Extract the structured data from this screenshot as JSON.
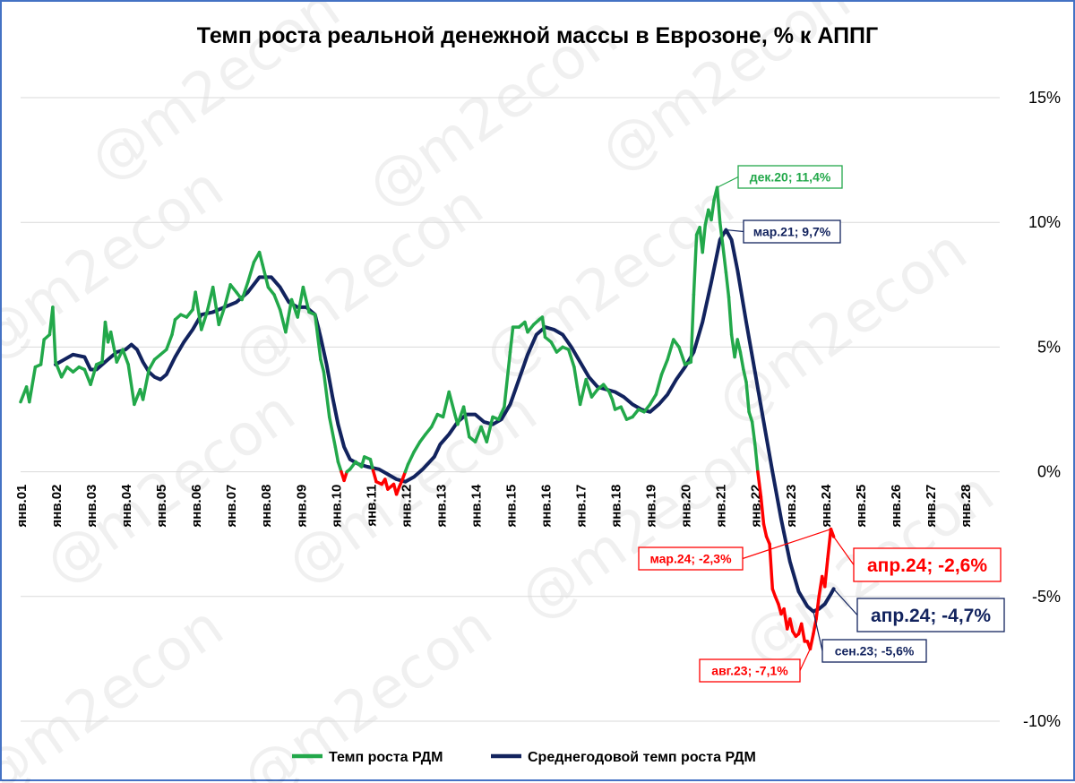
{
  "watermark": "@m2econ",
  "chart_data": {
    "type": "line",
    "title": "Темп роста реальной денежной массы в Еврозоне, % к АППГ",
    "y_axis": {
      "min": -10,
      "max": 15,
      "ticks": [
        -10,
        -5,
        0,
        5,
        10,
        15
      ],
      "tick_labels": [
        "-10%",
        "-5%",
        "0%",
        "5%",
        "10%",
        "15%"
      ],
      "position": "right"
    },
    "x_axis": {
      "min": 2001.0,
      "max": 2029.0,
      "ticks": [
        2001,
        2002,
        2003,
        2004,
        2005,
        2006,
        2007,
        2008,
        2009,
        2010,
        2011,
        2012,
        2013,
        2014,
        2015,
        2016,
        2017,
        2018,
        2019,
        2020,
        2021,
        2022,
        2023,
        2024,
        2025,
        2026,
        2027,
        2028
      ],
      "tick_labels": [
        "янв.01",
        "янв.02",
        "янв.03",
        "янв.04",
        "янв.05",
        "янв.06",
        "янв.07",
        "янв.08",
        "янв.09",
        "янв.10",
        "янв.11",
        "янв.12",
        "янв.13",
        "янв.14",
        "янв.15",
        "янв.16",
        "янв.17",
        "янв.18",
        "янв.19",
        "янв.20",
        "янв.21",
        "янв.22",
        "янв.23",
        "янв.24",
        "янв.25",
        "янв.26",
        "янв.27",
        "янв.28"
      ]
    },
    "grid": "horizontal",
    "legend_position": "bottom",
    "series": [
      {
        "name": "Темп роста РДМ",
        "color": "#22a84a",
        "negative_color": "#ff0000",
        "points": [
          [
            2001.0,
            2.8
          ],
          [
            2001.17,
            3.4
          ],
          [
            2001.25,
            2.8
          ],
          [
            2001.42,
            4.2
          ],
          [
            2001.58,
            4.3
          ],
          [
            2001.67,
            5.3
          ],
          [
            2001.83,
            5.5
          ],
          [
            2001.92,
            6.6
          ],
          [
            2002.0,
            4.4
          ],
          [
            2002.17,
            3.8
          ],
          [
            2002.33,
            4.2
          ],
          [
            2002.5,
            4.0
          ],
          [
            2002.67,
            4.2
          ],
          [
            2002.83,
            4.1
          ],
          [
            2003.0,
            3.5
          ],
          [
            2003.17,
            4.3
          ],
          [
            2003.33,
            4.4
          ],
          [
            2003.42,
            6.0
          ],
          [
            2003.5,
            5.2
          ],
          [
            2003.58,
            5.6
          ],
          [
            2003.75,
            4.4
          ],
          [
            2003.92,
            4.9
          ],
          [
            2004.08,
            4.3
          ],
          [
            2004.25,
            2.7
          ],
          [
            2004.42,
            3.3
          ],
          [
            2004.5,
            2.9
          ],
          [
            2004.67,
            4.1
          ],
          [
            2004.83,
            4.5
          ],
          [
            2005.0,
            4.7
          ],
          [
            2005.17,
            4.9
          ],
          [
            2005.33,
            5.5
          ],
          [
            2005.42,
            6.1
          ],
          [
            2005.58,
            6.3
          ],
          [
            2005.75,
            6.2
          ],
          [
            2005.92,
            6.5
          ],
          [
            2006.0,
            7.2
          ],
          [
            2006.17,
            5.7
          ],
          [
            2006.33,
            6.4
          ],
          [
            2006.5,
            7.4
          ],
          [
            2006.67,
            5.9
          ],
          [
            2006.83,
            6.6
          ],
          [
            2007.0,
            7.5
          ],
          [
            2007.17,
            7.2
          ],
          [
            2007.33,
            6.9
          ],
          [
            2007.5,
            7.6
          ],
          [
            2007.67,
            8.4
          ],
          [
            2007.83,
            8.8
          ],
          [
            2007.92,
            8.3
          ],
          [
            2008.08,
            7.4
          ],
          [
            2008.25,
            7.1
          ],
          [
            2008.42,
            6.5
          ],
          [
            2008.58,
            5.6
          ],
          [
            2008.75,
            6.9
          ],
          [
            2008.92,
            6.2
          ],
          [
            2009.08,
            7.4
          ],
          [
            2009.25,
            6.4
          ],
          [
            2009.42,
            6.3
          ],
          [
            2009.58,
            4.5
          ],
          [
            2009.67,
            4.0
          ],
          [
            2009.83,
            2.2
          ],
          [
            2010.0,
            1.0
          ],
          [
            2010.08,
            0.4
          ],
          [
            2010.17,
            0.0
          ],
          [
            2010.25,
            -0.35
          ],
          [
            2010.33,
            0.0
          ],
          [
            2010.42,
            0.1
          ],
          [
            2010.58,
            0.4
          ],
          [
            2010.75,
            0.2
          ],
          [
            2010.83,
            0.6
          ],
          [
            2011.0,
            0.5
          ],
          [
            2011.08,
            0.05
          ],
          [
            2011.17,
            -0.4
          ],
          [
            2011.33,
            -0.5
          ],
          [
            2011.42,
            -0.3
          ],
          [
            2011.5,
            -0.7
          ],
          [
            2011.67,
            -0.5
          ],
          [
            2011.75,
            -0.9
          ],
          [
            2011.83,
            -0.6
          ],
          [
            2011.92,
            -0.3
          ],
          [
            2012.0,
            0.0
          ],
          [
            2012.08,
            0.3
          ],
          [
            2012.25,
            0.8
          ],
          [
            2012.42,
            1.2
          ],
          [
            2012.58,
            1.5
          ],
          [
            2012.75,
            1.8
          ],
          [
            2012.92,
            2.3
          ],
          [
            2013.08,
            2.2
          ],
          [
            2013.25,
            3.2
          ],
          [
            2013.42,
            2.3
          ],
          [
            2013.5,
            1.9
          ],
          [
            2013.67,
            2.6
          ],
          [
            2013.83,
            1.4
          ],
          [
            2014.0,
            1.2
          ],
          [
            2014.17,
            1.8
          ],
          [
            2014.33,
            1.2
          ],
          [
            2014.5,
            2.2
          ],
          [
            2014.67,
            2.1
          ],
          [
            2014.83,
            2.6
          ],
          [
            2015.0,
            4.8
          ],
          [
            2015.08,
            5.8
          ],
          [
            2015.25,
            5.8
          ],
          [
            2015.42,
            6.0
          ],
          [
            2015.5,
            5.6
          ],
          [
            2015.67,
            5.9
          ],
          [
            2015.83,
            6.1
          ],
          [
            2015.92,
            6.2
          ],
          [
            2016.0,
            5.4
          ],
          [
            2016.17,
            5.2
          ],
          [
            2016.33,
            4.8
          ],
          [
            2016.5,
            5.0
          ],
          [
            2016.67,
            4.9
          ],
          [
            2016.83,
            4.2
          ],
          [
            2016.92,
            3.4
          ],
          [
            2017.0,
            2.7
          ],
          [
            2017.17,
            3.7
          ],
          [
            2017.33,
            3.0
          ],
          [
            2017.5,
            3.3
          ],
          [
            2017.67,
            3.5
          ],
          [
            2017.83,
            3.2
          ],
          [
            2017.92,
            2.9
          ],
          [
            2018.0,
            2.5
          ],
          [
            2018.17,
            2.6
          ],
          [
            2018.33,
            2.1
          ],
          [
            2018.5,
            2.2
          ],
          [
            2018.67,
            2.5
          ],
          [
            2018.83,
            2.4
          ],
          [
            2019.0,
            2.7
          ],
          [
            2019.17,
            3.1
          ],
          [
            2019.33,
            3.9
          ],
          [
            2019.5,
            4.5
          ],
          [
            2019.67,
            5.3
          ],
          [
            2019.83,
            5.0
          ],
          [
            2020.0,
            4.3
          ],
          [
            2020.17,
            4.4
          ],
          [
            2020.25,
            7.1
          ],
          [
            2020.33,
            9.5
          ],
          [
            2020.42,
            9.8
          ],
          [
            2020.5,
            8.8
          ],
          [
            2020.58,
            9.9
          ],
          [
            2020.67,
            10.5
          ],
          [
            2020.75,
            10.1
          ],
          [
            2020.83,
            10.9
          ],
          [
            2020.92,
            11.4
          ],
          [
            2021.0,
            10.0
          ],
          [
            2021.08,
            9.1
          ],
          [
            2021.17,
            8.0
          ],
          [
            2021.25,
            7.0
          ],
          [
            2021.33,
            5.5
          ],
          [
            2021.42,
            4.6
          ],
          [
            2021.5,
            5.3
          ],
          [
            2021.58,
            4.8
          ],
          [
            2021.67,
            4.1
          ],
          [
            2021.75,
            3.6
          ],
          [
            2021.83,
            2.4
          ],
          [
            2021.92,
            2.0
          ],
          [
            2022.0,
            1.1
          ],
          [
            2022.08,
            0.0
          ],
          [
            2022.17,
            -1.0
          ],
          [
            2022.25,
            -2.1
          ],
          [
            2022.33,
            -2.6
          ],
          [
            2022.42,
            -2.9
          ],
          [
            2022.5,
            -4.7
          ],
          [
            2022.58,
            -5.0
          ],
          [
            2022.67,
            -5.3
          ],
          [
            2022.75,
            -5.7
          ],
          [
            2022.83,
            -5.5
          ],
          [
            2022.92,
            -6.3
          ],
          [
            2023.0,
            -5.9
          ],
          [
            2023.08,
            -6.4
          ],
          [
            2023.17,
            -6.6
          ],
          [
            2023.25,
            -6.5
          ],
          [
            2023.33,
            -6.1
          ],
          [
            2023.42,
            -6.8
          ],
          [
            2023.5,
            -6.8
          ],
          [
            2023.58,
            -7.1
          ],
          [
            2023.67,
            -6.5
          ],
          [
            2023.75,
            -5.9
          ],
          [
            2023.83,
            -5.0
          ],
          [
            2023.92,
            -4.2
          ],
          [
            2024.0,
            -4.6
          ],
          [
            2024.08,
            -3.5
          ],
          [
            2024.17,
            -2.3
          ],
          [
            2024.25,
            -2.6
          ]
        ]
      },
      {
        "name": "Среднегодовой темп роста РДМ",
        "color": "#12235e",
        "points": [
          [
            2002.0,
            4.3
          ],
          [
            2002.25,
            4.5
          ],
          [
            2002.5,
            4.7
          ],
          [
            2002.83,
            4.6
          ],
          [
            2003.0,
            4.1
          ],
          [
            2003.17,
            4.1
          ],
          [
            2003.5,
            4.5
          ],
          [
            2003.75,
            4.8
          ],
          [
            2004.0,
            4.9
          ],
          [
            2004.17,
            5.1
          ],
          [
            2004.33,
            4.9
          ],
          [
            2004.5,
            4.4
          ],
          [
            2004.67,
            4.0
          ],
          [
            2004.83,
            3.8
          ],
          [
            2005.0,
            3.7
          ],
          [
            2005.17,
            3.9
          ],
          [
            2005.42,
            4.6
          ],
          [
            2005.67,
            5.2
          ],
          [
            2005.92,
            5.7
          ],
          [
            2006.17,
            6.3
          ],
          [
            2006.5,
            6.4
          ],
          [
            2006.83,
            6.6
          ],
          [
            2007.17,
            6.8
          ],
          [
            2007.5,
            7.2
          ],
          [
            2007.83,
            7.8
          ],
          [
            2008.17,
            7.8
          ],
          [
            2008.42,
            7.4
          ],
          [
            2008.67,
            6.8
          ],
          [
            2008.92,
            6.6
          ],
          [
            2009.17,
            6.6
          ],
          [
            2009.42,
            6.3
          ],
          [
            2009.58,
            5.4
          ],
          [
            2009.75,
            4.3
          ],
          [
            2009.92,
            3.0
          ],
          [
            2010.08,
            1.9
          ],
          [
            2010.25,
            1.0
          ],
          [
            2010.42,
            0.5
          ],
          [
            2010.67,
            0.3
          ],
          [
            2010.92,
            0.2
          ],
          [
            2011.25,
            0.1
          ],
          [
            2011.5,
            -0.1
          ],
          [
            2011.75,
            -0.3
          ],
          [
            2012.0,
            -0.4
          ],
          [
            2012.25,
            -0.2
          ],
          [
            2012.5,
            0.1
          ],
          [
            2012.83,
            0.6
          ],
          [
            2013.0,
            1.1
          ],
          [
            2013.25,
            1.5
          ],
          [
            2013.5,
            2.0
          ],
          [
            2013.75,
            2.3
          ],
          [
            2014.0,
            2.3
          ],
          [
            2014.25,
            2.0
          ],
          [
            2014.5,
            1.9
          ],
          [
            2014.75,
            2.1
          ],
          [
            2015.0,
            2.7
          ],
          [
            2015.25,
            3.7
          ],
          [
            2015.5,
            4.7
          ],
          [
            2015.75,
            5.5
          ],
          [
            2016.0,
            5.8
          ],
          [
            2016.25,
            5.7
          ],
          [
            2016.5,
            5.5
          ],
          [
            2016.75,
            5.0
          ],
          [
            2017.0,
            4.4
          ],
          [
            2017.25,
            3.8
          ],
          [
            2017.5,
            3.4
          ],
          [
            2017.75,
            3.3
          ],
          [
            2018.0,
            3.2
          ],
          [
            2018.25,
            3.0
          ],
          [
            2018.5,
            2.7
          ],
          [
            2018.75,
            2.5
          ],
          [
            2019.0,
            2.4
          ],
          [
            2019.25,
            2.7
          ],
          [
            2019.5,
            3.1
          ],
          [
            2019.75,
            3.7
          ],
          [
            2020.0,
            4.2
          ],
          [
            2020.25,
            4.8
          ],
          [
            2020.5,
            6.0
          ],
          [
            2020.75,
            7.6
          ],
          [
            2021.0,
            9.3
          ],
          [
            2021.17,
            9.7
          ],
          [
            2021.33,
            9.3
          ],
          [
            2021.5,
            8.1
          ],
          [
            2021.75,
            6.0
          ],
          [
            2022.0,
            4.0
          ],
          [
            2022.25,
            2.0
          ],
          [
            2022.5,
            0.0
          ],
          [
            2022.75,
            -1.9
          ],
          [
            2023.0,
            -3.6
          ],
          [
            2023.25,
            -4.8
          ],
          [
            2023.5,
            -5.4
          ],
          [
            2023.67,
            -5.6
          ],
          [
            2023.83,
            -5.5
          ],
          [
            2024.0,
            -5.3
          ],
          [
            2024.17,
            -4.9
          ],
          [
            2024.25,
            -4.7
          ]
        ]
      }
    ],
    "annotations": [
      {
        "text": "дек.20; 11,4%",
        "x": 2020.92,
        "y": 11.4,
        "series": 0
      },
      {
        "text": "мар.21; 9,7%",
        "x": 2021.17,
        "y": 9.7,
        "series": 1
      },
      {
        "text": "мар.24; -2,3%",
        "x": 2024.17,
        "y": -2.3,
        "series": 0
      },
      {
        "text": "апр.24; -2,6%",
        "x": 2024.25,
        "y": -2.6,
        "series": 0
      },
      {
        "text": "апр.24; -4,7%",
        "x": 2024.25,
        "y": -4.7,
        "series": 1
      },
      {
        "text": "сен.23; -5,6%",
        "x": 2023.67,
        "y": -5.6,
        "series": 1
      },
      {
        "text": "авг.23; -7,1%",
        "x": 2023.58,
        "y": -7.1,
        "series": 0
      }
    ]
  }
}
